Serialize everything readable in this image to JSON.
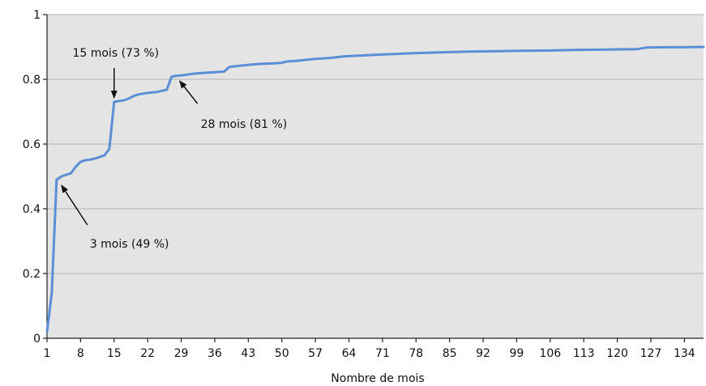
{
  "chart_data": {
    "type": "line",
    "title": "",
    "xlabel": "Nombre de mois",
    "ylabel": "",
    "xlim": [
      1,
      138
    ],
    "ylim": [
      0,
      1
    ],
    "grid": true,
    "plot_background": "#e4e4e4",
    "gridline_color": "#b4b4b4",
    "line_color": "#5b8ed6",
    "x_ticks": [
      1,
      8,
      15,
      22,
      29,
      36,
      43,
      50,
      57,
      64,
      71,
      78,
      85,
      92,
      99,
      106,
      113,
      120,
      127,
      134
    ],
    "y_ticks": [
      0,
      0.2,
      0.4,
      0.6,
      0.8,
      1
    ],
    "y_tick_labels": [
      "0",
      "0.2",
      "0.4",
      "0.6",
      "0.8",
      "1"
    ],
    "series": [
      {
        "x": [
          1,
          2,
          3,
          4,
          5,
          6,
          7,
          8,
          9,
          10,
          11,
          12,
          13,
          14,
          15,
          16,
          17,
          18,
          19,
          20,
          22,
          24,
          26,
          27,
          28,
          29,
          30,
          32,
          34,
          36,
          38,
          39,
          40,
          42,
          44,
          46,
          48,
          50,
          51,
          53,
          55,
          57,
          60,
          62,
          63,
          66,
          70,
          75,
          78,
          80,
          85,
          90,
          95,
          100,
          106,
          112,
          118,
          124,
          126,
          130,
          134,
          138
        ],
        "y": [
          0.02,
          0.14,
          0.49,
          0.5,
          0.505,
          0.51,
          0.53,
          0.545,
          0.55,
          0.552,
          0.555,
          0.56,
          0.565,
          0.585,
          0.73,
          0.733,
          0.735,
          0.74,
          0.748,
          0.753,
          0.758,
          0.761,
          0.768,
          0.808,
          0.811,
          0.812,
          0.814,
          0.818,
          0.82,
          0.822,
          0.824,
          0.838,
          0.84,
          0.843,
          0.846,
          0.848,
          0.849,
          0.851,
          0.855,
          0.857,
          0.86,
          0.863,
          0.866,
          0.869,
          0.871,
          0.873,
          0.876,
          0.879,
          0.881,
          0.882,
          0.884,
          0.886,
          0.887,
          0.888,
          0.889,
          0.891,
          0.892,
          0.893,
          0.898,
          0.899,
          0.899,
          0.9
        ]
      }
    ],
    "annotations": [
      {
        "text": "15 mois (73 %)",
        "x": 15,
        "y": 0.73
      },
      {
        "text": "28 mois (81 %)",
        "x": 28,
        "y": 0.81
      },
      {
        "text": "3 mois (49 %)",
        "x": 3,
        "y": 0.49
      }
    ]
  }
}
